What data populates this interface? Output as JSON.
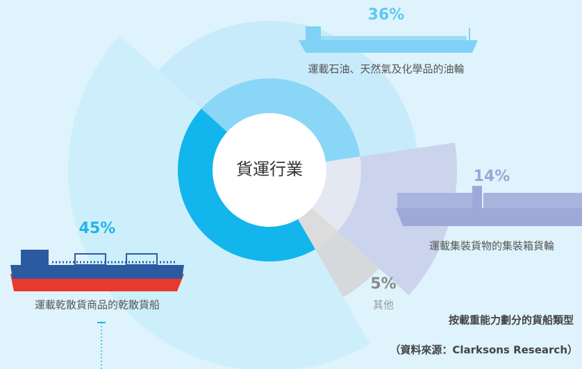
{
  "chart_data": {
    "type": "pie",
    "center_label": "貨運行業",
    "categories": [
      "運載石油、天然氣及化學品的油輪",
      "運載集裝貨物的集裝箱貨輪",
      "其他",
      "運載乾散貨商品的乾散貨船"
    ],
    "values": [
      36,
      14,
      5,
      45
    ],
    "value_labels": [
      "36%",
      "14%",
      "5%",
      "45%"
    ],
    "colors": [
      "#c4eafb",
      "#c9d0ea",
      "#d4d6d8",
      "#cbeefb"
    ],
    "inner_colors": [
      "#8ad6f7",
      "#e4e8f2",
      "#dcdcdc",
      "#12b6ec"
    ],
    "label_colors": [
      "#5cc8f3",
      "#9aa6d6",
      "#8a8a8a",
      "#22b4ea"
    ],
    "note": "按載重能力劃分的貨船類型",
    "source": "（資料來源：Clarksons Research）"
  }
}
